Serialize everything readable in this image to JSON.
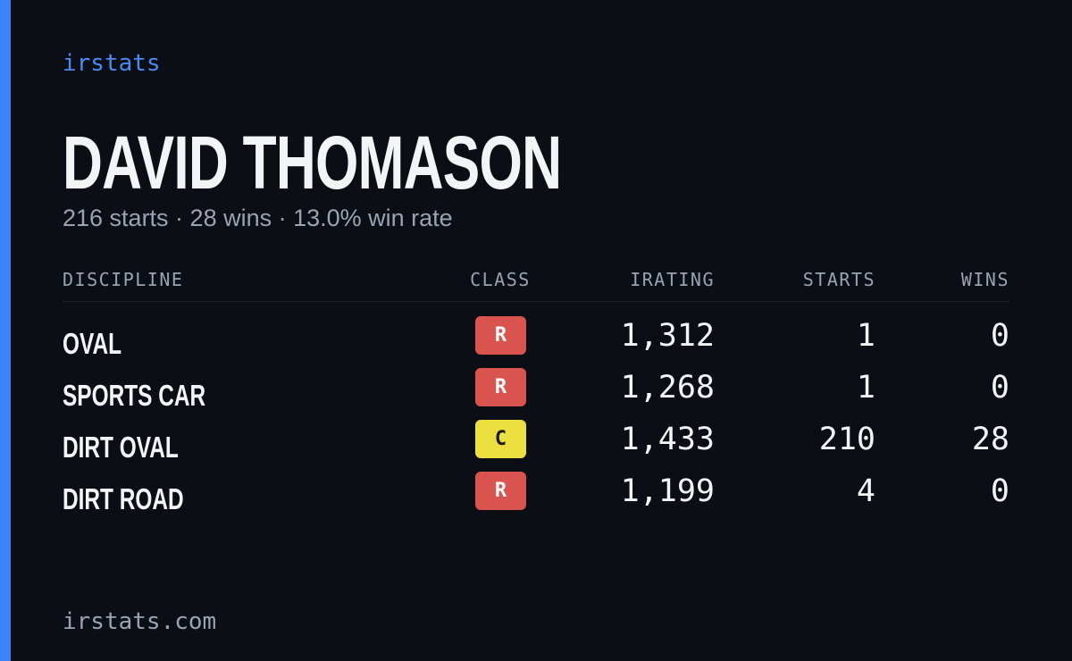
{
  "header": {
    "brand": "irstats",
    "name": "DAVID THOMASON",
    "summary": "216 starts · 28 wins · 13.0% win rate"
  },
  "table": {
    "columns": [
      "DISCIPLINE",
      "CLASS",
      "IRATING",
      "STARTS",
      "WINS"
    ],
    "rows": [
      [
        "OVAL",
        "R",
        "1,312",
        "1",
        "0"
      ],
      [
        "SPORTS CAR",
        "R",
        "1,268",
        "1",
        "0"
      ],
      [
        "DIRT OVAL",
        "C",
        "1,433",
        "210",
        "28"
      ],
      [
        "DIRT ROAD",
        "R",
        "1,199",
        "4",
        "0"
      ]
    ]
  },
  "footer": {
    "site": "irstats.com"
  }
}
